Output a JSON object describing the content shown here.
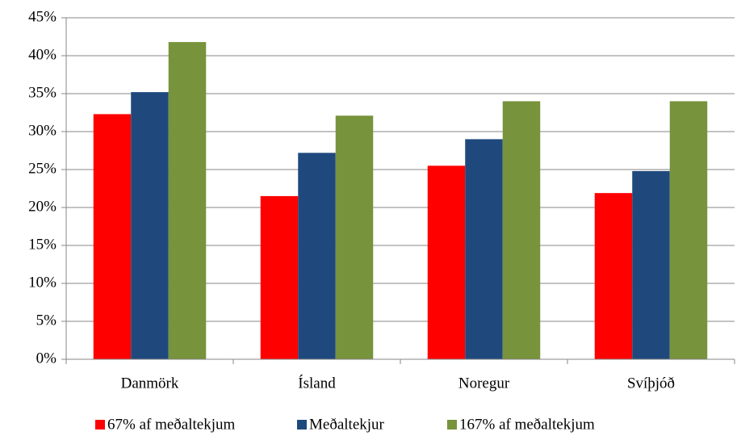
{
  "chart_data": {
    "type": "bar",
    "categories": [
      "Danmörk",
      "Ísland",
      "Noregur",
      "Svíþjóð"
    ],
    "series": [
      {
        "name": "67% af meðaltekjum",
        "color": "#ff0000",
        "values": [
          32.3,
          21.5,
          25.5,
          21.9
        ]
      },
      {
        "name": "Meðaltekjur",
        "color": "#1f497d",
        "values": [
          35.2,
          27.2,
          29.0,
          24.8
        ]
      },
      {
        "name": "167% af meðaltekjum",
        "color": "#77933c",
        "values": [
          41.8,
          32.1,
          34.0,
          34.0
        ]
      }
    ],
    "ylim": [
      0,
      45
    ],
    "yticks": [
      {
        "value": 0,
        "label": "0%"
      },
      {
        "value": 5,
        "label": "5%"
      },
      {
        "value": 10,
        "label": "10%"
      },
      {
        "value": 15,
        "label": "15%"
      },
      {
        "value": 20,
        "label": "20%"
      },
      {
        "value": 25,
        "label": "25%"
      },
      {
        "value": 30,
        "label": "30%"
      },
      {
        "value": 35,
        "label": "35%"
      },
      {
        "value": 40,
        "label": "40%"
      },
      {
        "value": 45,
        "label": "45%"
      }
    ],
    "grid": true
  }
}
